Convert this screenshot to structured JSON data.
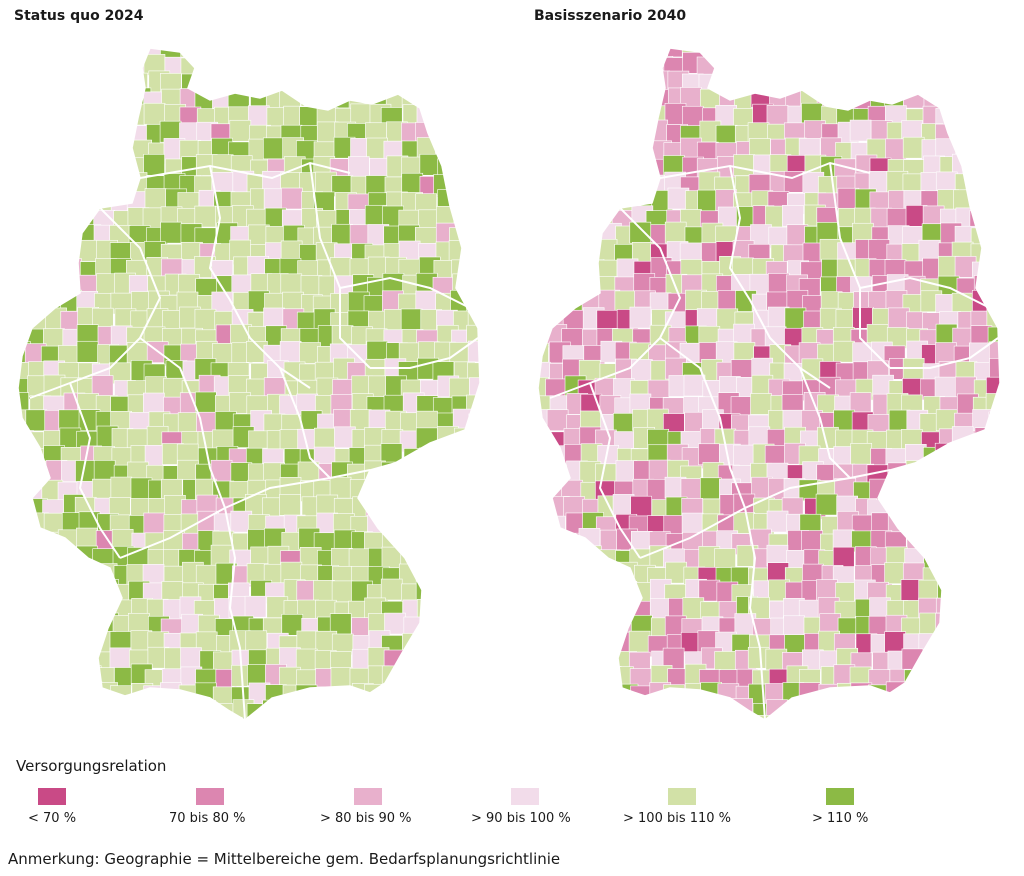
{
  "maps": {
    "left": {
      "title": "Status quo 2024",
      "class_weights": [
        0.0,
        0.01,
        0.07,
        0.16,
        0.5,
        0.26
      ],
      "seed": 7
    },
    "right": {
      "title": "Basisszenario 2040",
      "class_weights": [
        0.04,
        0.16,
        0.24,
        0.2,
        0.28,
        0.08
      ],
      "seed": 23
    }
  },
  "legend": {
    "title": "Versorgungsrelation",
    "items": [
      {
        "label": "< 70 %",
        "color": "#c94a86"
      },
      {
        "label": "70 bis 80 %",
        "color": "#dc86b0"
      },
      {
        "label": "> 80 bis 90 %",
        "color": "#e8b0cc"
      },
      {
        "label": "> 90 bis 100 %",
        "color": "#f2dcea"
      },
      {
        "label": "> 100 bis 110 %",
        "color": "#d2e1a7"
      },
      {
        "label": "> 110 %",
        "color": "#8cba45"
      }
    ]
  },
  "note": "Anmerkung: Geographie = Mittelbereiche gem. Bedarfsplanungsrichtlinie"
}
